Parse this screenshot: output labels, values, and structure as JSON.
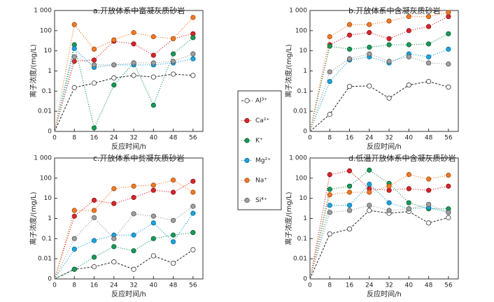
{
  "chart_data": [
    {
      "type": "line",
      "title": "a.开放体系中富凝灰质砂岩",
      "xlabel": "反应时间/h",
      "ylabel": "离子浓度/(mg/L)",
      "log": true,
      "x": [
        0,
        8,
        16,
        24,
        32,
        40,
        48,
        56
      ],
      "xlim": [
        0,
        60
      ],
      "xticks": [
        0,
        8,
        16,
        24,
        32,
        40,
        48,
        56
      ],
      "ylim": [
        0,
        1000
      ],
      "yticks": [
        0,
        0.01,
        0.1,
        1,
        10,
        100,
        {
          "value": 1000,
          "label": "1 000"
        }
      ],
      "series": [
        {
          "values": [
            0,
            0.15,
            0.25,
            0.45,
            0.6,
            0.5,
            0.7,
            0.6
          ]
        },
        {
          "values": [
            0,
            3,
            3.5,
            30,
            22,
            6,
            40,
            70
          ]
        },
        {
          "values": [
            0,
            20,
            0.0015,
            0.2,
            2.5,
            0.02,
            7,
            45
          ]
        },
        {
          "values": [
            0,
            13,
            1.5,
            2,
            2,
            2,
            2.5,
            4
          ]
        },
        {
          "values": [
            0,
            200,
            12,
            35,
            80,
            50,
            40,
            450
          ]
        },
        {
          "values": [
            0,
            5,
            2,
            2,
            2.5,
            2.5,
            3,
            7
          ]
        }
      ]
    },
    {
      "type": "line",
      "title": "b.开放体系中含凝灰质砂岩",
      "xlabel": "反应时间/h",
      "ylabel": "离子浓度/(mg/L)",
      "log": true,
      "x": [
        0,
        8,
        16,
        24,
        32,
        40,
        48,
        56
      ],
      "xlim": [
        0,
        60
      ],
      "xticks": [
        0,
        8,
        16,
        24,
        32,
        40,
        48,
        56
      ],
      "ylim": [
        0,
        1000
      ],
      "yticks": [
        0,
        0.01,
        0.1,
        1,
        10,
        100,
        {
          "value": 1000,
          "label": "1 000"
        }
      ],
      "series": [
        {
          "values": [
            0,
            0.007,
            0.17,
            0.18,
            0.045,
            0.2,
            0.3,
            0.16
          ]
        },
        {
          "values": [
            0,
            20,
            60,
            80,
            40,
            100,
            160,
            500
          ]
        },
        {
          "values": [
            0,
            17,
            12,
            15,
            20,
            20,
            22,
            70
          ]
        },
        {
          "values": [
            0,
            0.3,
            3.5,
            5,
            2.5,
            7,
            5,
            12
          ]
        },
        {
          "values": [
            0,
            50,
            200,
            200,
            300,
            500,
            500,
            800
          ]
        },
        {
          "values": [
            0,
            0.9,
            4,
            7,
            3,
            5,
            2.5,
            2.2
          ]
        }
      ]
    },
    {
      "type": "line",
      "title": "c.开放体系中贫凝灰质砂岩",
      "xlabel": "反应时间/h",
      "ylabel": "离子浓度/(mg/L)",
      "log": true,
      "x": [
        0,
        8,
        16,
        24,
        32,
        40,
        48,
        56
      ],
      "xlim": [
        0,
        60
      ],
      "xticks": [
        0,
        8,
        16,
        24,
        32,
        40,
        48,
        56
      ],
      "ylim": [
        0,
        1000
      ],
      "yticks": [
        0,
        0.01,
        0.1,
        1,
        10,
        100,
        {
          "value": 1000,
          "label": "1 000"
        }
      ],
      "series": [
        {
          "values": [
            0,
            0.003,
            0.004,
            0.007,
            0.003,
            0.014,
            0.006,
            0.028
          ]
        },
        {
          "values": [
            0,
            1.3,
            8,
            5.5,
            11,
            25,
            20,
            70
          ]
        },
        {
          "values": [
            0,
            0.003,
            0.012,
            0.04,
            0.025,
            0.1,
            0.15,
            0.2
          ]
        },
        {
          "values": [
            0,
            0.03,
            0.08,
            0.15,
            0.15,
            0.6,
            0.07,
            1.8
          ]
        },
        {
          "values": [
            0,
            2.5,
            2.5,
            30,
            40,
            45,
            80,
            20
          ]
        },
        {
          "values": [
            0,
            0.1,
            1.1,
            0.1,
            1.7,
            1.3,
            0.8,
            4
          ]
        }
      ]
    },
    {
      "type": "line",
      "title": "d.低温开放体系中含凝灰质砂岩",
      "xlabel": "反应时间/h",
      "ylabel": "离子浓度/(mg/L)",
      "log": true,
      "x": [
        0,
        8,
        16,
        24,
        32,
        40,
        48,
        56
      ],
      "xlim": [
        0,
        60
      ],
      "xticks": [
        0,
        8,
        16,
        24,
        32,
        40,
        48,
        56
      ],
      "ylim": [
        0,
        1000
      ],
      "yticks": [
        0,
        0.01,
        0.1,
        1,
        10,
        100,
        {
          "value": 1000,
          "label": "1 000"
        }
      ],
      "series": [
        {
          "values": [
            0,
            0.17,
            0.3,
            2.5,
            1.8,
            2.2,
            0.6,
            1.1
          ]
        },
        {
          "values": [
            0,
            150,
            230,
            30,
            25,
            30,
            25,
            40
          ]
        },
        {
          "values": [
            0,
            28,
            40,
            250,
            55,
            6,
            3,
            3
          ]
        },
        {
          "values": [
            0,
            4.5,
            4.5,
            50,
            6,
            3,
            3.5,
            2
          ]
        },
        {
          "values": [
            0,
            15,
            20,
            20,
            40,
            150,
            90,
            140
          ]
        },
        {
          "values": [
            0,
            2,
            2.5,
            4.5,
            2.5,
            3,
            5,
            2
          ]
        }
      ]
    }
  ],
  "legend": [
    {
      "name": "Al³⁺",
      "color": "#ffffff",
      "edge": "#333333",
      "line": "#333333"
    },
    {
      "name": "Ca²⁺",
      "color": "#d7262b",
      "edge": "#8a1418",
      "line": "#d7262b"
    },
    {
      "name": "K⁺",
      "color": "#1a9a5a",
      "edge": "#0c5a32",
      "line": "#1a9a5a"
    },
    {
      "name": "Mg²⁺",
      "color": "#1ea3dc",
      "edge": "#0d6a94",
      "line": "#1ea3dc"
    },
    {
      "name": "Na⁺",
      "color": "#f07a26",
      "edge": "#a04a10",
      "line": "#f07a26"
    },
    {
      "name": "Si⁴⁺",
      "color": "#a0a0a0",
      "edge": "#555555",
      "line": "#a0a0a0"
    }
  ]
}
